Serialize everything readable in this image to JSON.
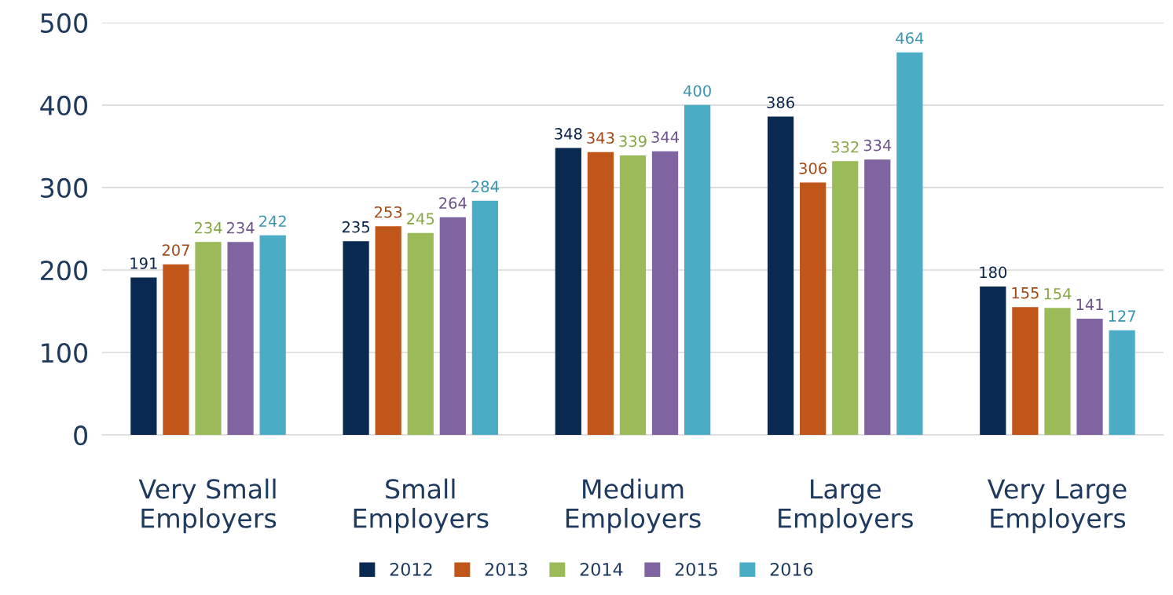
{
  "chart_data": {
    "type": "bar",
    "categories": [
      "Very Small\nEmployers",
      "Small\nEmployers",
      "Medium\nEmployers",
      "Large\nEmployers",
      "Very Large\nEmployers"
    ],
    "series": [
      {
        "name": "2012",
        "color": "#0b2a52",
        "values": [
          191,
          235,
          348,
          386,
          180
        ]
      },
      {
        "name": "2013",
        "color": "#c0561a",
        "values": [
          207,
          253,
          343,
          306,
          155
        ]
      },
      {
        "name": "2014",
        "color": "#9bbb59",
        "values": [
          234,
          245,
          339,
          332,
          154
        ]
      },
      {
        "name": "2015",
        "color": "#8064a2",
        "values": [
          234,
          264,
          344,
          334,
          141
        ]
      },
      {
        "name": "2016",
        "color": "#4bacc6",
        "values": [
          242,
          284,
          400,
          464,
          127
        ]
      }
    ],
    "ylim": [
      0,
      500
    ],
    "yticks": [
      0,
      100,
      200,
      300,
      400,
      500
    ],
    "grid": "y",
    "legend": "bottom",
    "data_labels": true
  }
}
